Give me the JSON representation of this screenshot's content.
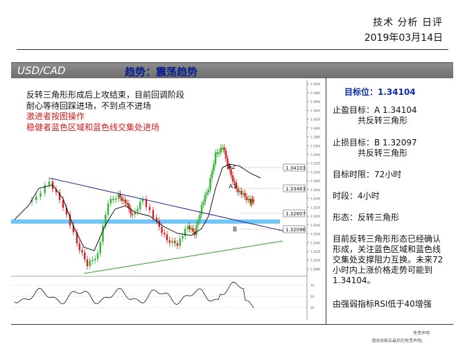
{
  "header": {
    "title": "技术 分析 日评",
    "date": "2019年03月14日"
  },
  "banner": {
    "pair": "USD/CAD",
    "trend": "趋势：震荡趋势"
  },
  "notes": {
    "line1": "反转三角形形成后上攻结束，目前回调阶段",
    "line2": "耐心等待回踩进场，不到点不进场",
    "line3": "激进者按图操作",
    "line4": "稳健者蓝色区域和蓝色线交集处进场"
  },
  "chart_data": {
    "type": "candlestick",
    "levels": [
      {
        "label": "1.34103",
        "value": 1.34103
      },
      {
        "label": "1.33463",
        "value": 1.33463
      },
      {
        "label": "1.32607",
        "value": 1.32607
      },
      {
        "label": "1.32096",
        "value": 1.32096
      }
    ],
    "annotations": [
      "A2",
      "A1",
      "B"
    ],
    "yticks": [
      "1.3500",
      "1.3480",
      "1.3460",
      "1.3440",
      "1.3420",
      "1.3400",
      "1.3380",
      "1.3360",
      "1.3340",
      "1.3320",
      "1.3300",
      "1.3280",
      "1.3260",
      "1.3240",
      "1.3220",
      "1.3200",
      "1.3180",
      "1.3160",
      "1.3140",
      "1.3120",
      "1.3100",
      "1.3080"
    ],
    "rsi_ticks": [
      "70",
      "50",
      "30"
    ],
    "colors": {
      "up": "#2fb52f",
      "down": "#d81b1b",
      "ma": "#111111",
      "triangle_top": "#2a2a8a",
      "support": "#2e9a2e",
      "zone": "#6ec6ff"
    }
  },
  "side": {
    "target": "目标位：1.34104",
    "tp": "止盈目标：A 1.34104",
    "tp_sub": "共反转三角形",
    "sl": "止损目标：B  1.32097",
    "sl_sub": "共反转三角形",
    "time_limit": "目标时限：72小时",
    "period": "时段：4小时",
    "pattern": "形态：反转三角形",
    "desc1": "目前反转三角形形态已经确认",
    "desc2": "形成，关注蓝色区域和蓝色线",
    "desc3": "交集处支撑阻力互换。未来72",
    "desc4": "小时内上涨价格走势可能到",
    "desc5": "1.34104。",
    "rsi": "由强弱指标RSI低于40增强"
  },
  "footer": {
    "disc1": "免责声明",
    "disc2": "请阅读报告最后的免责声明。"
  }
}
